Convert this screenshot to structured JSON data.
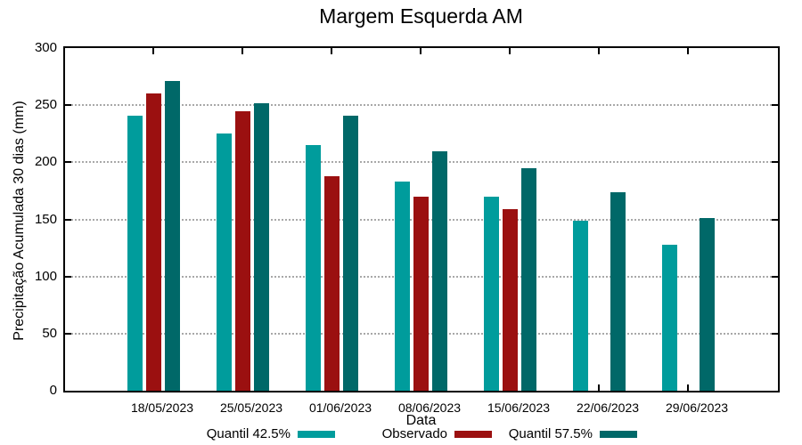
{
  "title": "Margem Esquerda AM",
  "axes": {
    "y_label": "Precipitação Acumulada 30 dias (mm)",
    "x_label": "Data",
    "y_tick_values": [
      0,
      50,
      100,
      150,
      200,
      250,
      300
    ],
    "grid_values": [
      50,
      100,
      150,
      200,
      250
    ]
  },
  "legend": {
    "items": [
      {
        "label": "Quantil 42.5%",
        "color": "#009C9C"
      },
      {
        "label": "Observado",
        "color": "#9B1010"
      },
      {
        "label": "Quantil 57.5%",
        "color": "#006868"
      }
    ]
  },
  "chart_data": {
    "type": "bar",
    "title": "Margem Esquerda AM",
    "xlabel": "Data",
    "ylabel": "Precipitação Acumulada 30 dias (mm)",
    "ylim": [
      0,
      300
    ],
    "grid": true,
    "legend_position": "bottom",
    "categories": [
      "18/05/2023",
      "25/05/2023",
      "01/06/2023",
      "08/06/2023",
      "15/06/2023",
      "22/06/2023",
      "29/06/2023"
    ],
    "series": [
      {
        "name": "Quantil 42.5%",
        "color": "#009C9C",
        "values": [
          241,
          225,
          215,
          183,
          170,
          149,
          128
        ]
      },
      {
        "name": "Observado",
        "color": "#9B1010",
        "values": [
          260,
          245,
          188,
          170,
          159,
          null,
          null
        ]
      },
      {
        "name": "Quantil 57.5%",
        "color": "#006868",
        "values": [
          271,
          252,
          241,
          210,
          195,
          174,
          151
        ]
      }
    ]
  }
}
